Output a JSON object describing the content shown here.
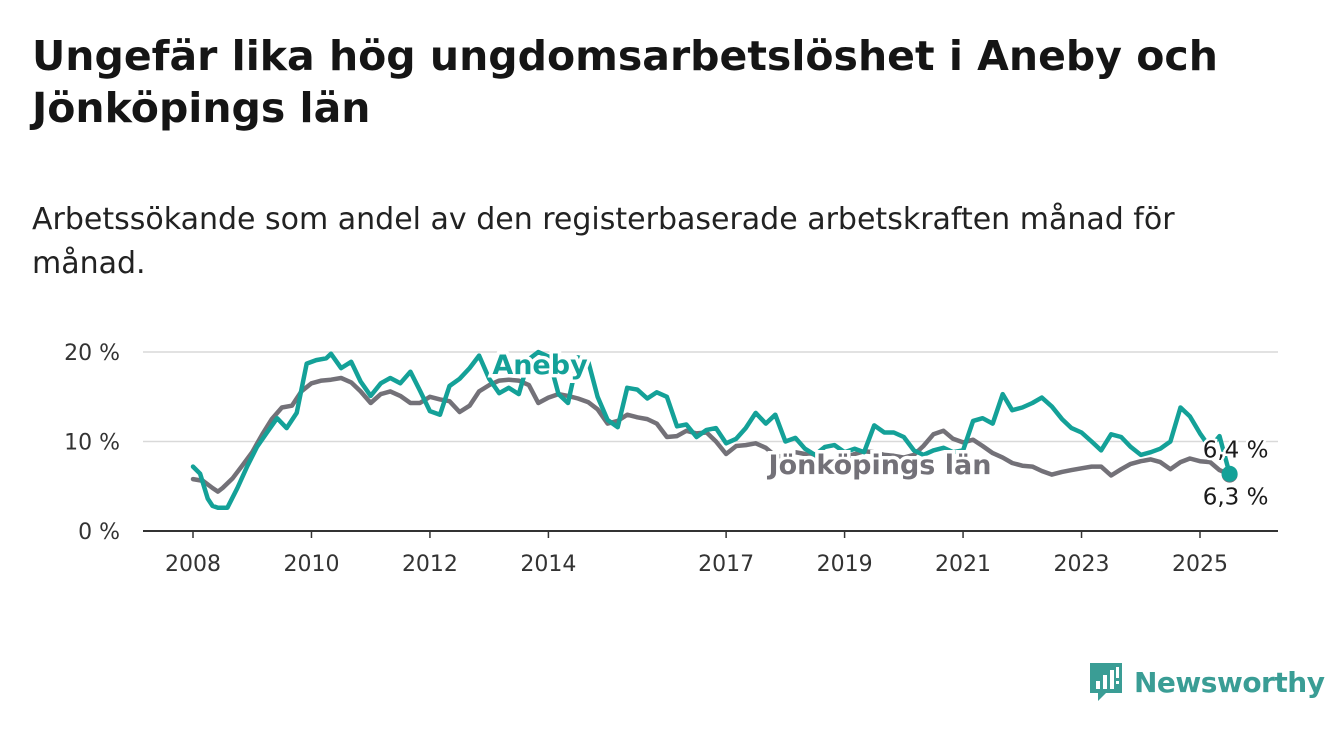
{
  "title": "Ungefär lika hög ungdomsarbetslöshet i Aneby och Jönköpings län",
  "subtitle": "Arbetssökande som andel av den registerbaserade arbetskraften månad för månad.",
  "logo": {
    "text": "Newsworthy",
    "color": "#3a9d95",
    "icon": "newsworthy-chart-bubble-icon"
  },
  "chart_data": {
    "type": "line",
    "title": "",
    "xlabel": "",
    "ylabel": "",
    "ylim": [
      0,
      20
    ],
    "xlim": [
      2008,
      2026.3
    ],
    "y_ticks": [
      {
        "value": 0,
        "label": "0 %"
      },
      {
        "value": 10,
        "label": "10 %"
      },
      {
        "value": 20,
        "label": "20 %"
      }
    ],
    "x_ticks": [
      {
        "value": 2008,
        "label": "2008"
      },
      {
        "value": 2010,
        "label": "2010"
      },
      {
        "value": 2012,
        "label": "2012"
      },
      {
        "value": 2014,
        "label": "2014"
      },
      {
        "value": 2017,
        "label": "2017"
      },
      {
        "value": 2019,
        "label": "2019"
      },
      {
        "value": 2021,
        "label": "2021"
      },
      {
        "value": 2023,
        "label": "2023"
      },
      {
        "value": 2025,
        "label": "2025"
      }
    ],
    "grid": "horizontal",
    "series": [
      {
        "name": "Jönköpings län",
        "color": "#737178",
        "end_label": "6,3 %",
        "points": [
          [
            2008.0,
            5.8
          ],
          [
            2008.17,
            5.6
          ],
          [
            2008.33,
            4.8
          ],
          [
            2008.42,
            4.4
          ],
          [
            2008.5,
            4.8
          ],
          [
            2008.67,
            5.9
          ],
          [
            2008.83,
            7.3
          ],
          [
            2009.0,
            8.8
          ],
          [
            2009.17,
            10.8
          ],
          [
            2009.33,
            12.5
          ],
          [
            2009.5,
            13.8
          ],
          [
            2009.67,
            14.0
          ],
          [
            2009.83,
            15.6
          ],
          [
            2010.0,
            16.5
          ],
          [
            2010.17,
            16.8
          ],
          [
            2010.33,
            16.9
          ],
          [
            2010.5,
            17.1
          ],
          [
            2010.67,
            16.6
          ],
          [
            2010.83,
            15.6
          ],
          [
            2011.0,
            14.3
          ],
          [
            2011.17,
            15.3
          ],
          [
            2011.33,
            15.6
          ],
          [
            2011.5,
            15.1
          ],
          [
            2011.67,
            14.3
          ],
          [
            2011.83,
            14.3
          ],
          [
            2012.0,
            15.0
          ],
          [
            2012.17,
            14.7
          ],
          [
            2012.33,
            14.5
          ],
          [
            2012.5,
            13.3
          ],
          [
            2012.67,
            14.0
          ],
          [
            2012.83,
            15.6
          ],
          [
            2013.0,
            16.3
          ],
          [
            2013.17,
            16.8
          ],
          [
            2013.33,
            16.9
          ],
          [
            2013.5,
            16.8
          ],
          [
            2013.67,
            16.3
          ],
          [
            2013.83,
            14.3
          ],
          [
            2014.0,
            14.9
          ],
          [
            2014.17,
            15.3
          ],
          [
            2014.33,
            15.1
          ],
          [
            2014.5,
            14.8
          ],
          [
            2014.67,
            14.4
          ],
          [
            2014.83,
            13.6
          ],
          [
            2015.0,
            12.0
          ],
          [
            2015.17,
            12.3
          ],
          [
            2015.33,
            13.0
          ],
          [
            2015.5,
            12.7
          ],
          [
            2015.67,
            12.5
          ],
          [
            2015.83,
            12.0
          ],
          [
            2016.0,
            10.5
          ],
          [
            2016.17,
            10.6
          ],
          [
            2016.33,
            11.2
          ],
          [
            2016.5,
            10.9
          ],
          [
            2016.67,
            11.0
          ],
          [
            2016.83,
            10.0
          ],
          [
            2017.0,
            8.6
          ],
          [
            2017.17,
            9.5
          ],
          [
            2017.33,
            9.6
          ],
          [
            2017.5,
            9.8
          ],
          [
            2017.67,
            9.3
          ],
          [
            2017.83,
            8.4
          ],
          [
            2018.0,
            8.3
          ],
          [
            2018.17,
            8.8
          ],
          [
            2018.33,
            8.6
          ],
          [
            2018.5,
            8.3
          ],
          [
            2018.67,
            7.9
          ],
          [
            2018.83,
            7.8
          ],
          [
            2019.0,
            8.2
          ],
          [
            2019.17,
            8.6
          ],
          [
            2019.33,
            8.9
          ],
          [
            2019.5,
            8.8
          ],
          [
            2019.67,
            8.5
          ],
          [
            2019.83,
            8.4
          ],
          [
            2020.0,
            8.2
          ],
          [
            2020.17,
            8.5
          ],
          [
            2020.33,
            9.5
          ],
          [
            2020.5,
            10.8
          ],
          [
            2020.67,
            11.2
          ],
          [
            2020.83,
            10.3
          ],
          [
            2021.0,
            9.9
          ],
          [
            2021.17,
            10.2
          ],
          [
            2021.33,
            9.5
          ],
          [
            2021.5,
            8.7
          ],
          [
            2021.67,
            8.2
          ],
          [
            2021.83,
            7.6
          ],
          [
            2022.0,
            7.3
          ],
          [
            2022.17,
            7.2
          ],
          [
            2022.33,
            6.7
          ],
          [
            2022.5,
            6.3
          ],
          [
            2022.67,
            6.6
          ],
          [
            2022.83,
            6.8
          ],
          [
            2023.0,
            7.0
          ],
          [
            2023.17,
            7.2
          ],
          [
            2023.33,
            7.2
          ],
          [
            2023.5,
            6.2
          ],
          [
            2023.67,
            6.9
          ],
          [
            2023.83,
            7.5
          ],
          [
            2024.0,
            7.8
          ],
          [
            2024.17,
            8.0
          ],
          [
            2024.33,
            7.7
          ],
          [
            2024.5,
            6.9
          ],
          [
            2024.67,
            7.7
          ],
          [
            2024.83,
            8.1
          ],
          [
            2025.0,
            7.8
          ],
          [
            2025.17,
            7.7
          ],
          [
            2025.33,
            6.8
          ],
          [
            2025.5,
            6.3
          ]
        ]
      },
      {
        "name": "Aneby",
        "color": "#14a198",
        "end_label": "6,4 %",
        "points": [
          [
            2008.0,
            7.2
          ],
          [
            2008.12,
            6.4
          ],
          [
            2008.25,
            3.6
          ],
          [
            2008.33,
            2.8
          ],
          [
            2008.42,
            2.6
          ],
          [
            2008.5,
            2.6
          ],
          [
            2008.58,
            2.6
          ],
          [
            2008.75,
            4.8
          ],
          [
            2008.92,
            7.3
          ],
          [
            2009.08,
            9.4
          ],
          [
            2009.25,
            11.0
          ],
          [
            2009.42,
            12.6
          ],
          [
            2009.58,
            11.5
          ],
          [
            2009.75,
            13.2
          ],
          [
            2009.92,
            18.7
          ],
          [
            2010.08,
            19.1
          ],
          [
            2010.25,
            19.3
          ],
          [
            2010.33,
            19.8
          ],
          [
            2010.5,
            18.2
          ],
          [
            2010.67,
            18.9
          ],
          [
            2010.83,
            16.7
          ],
          [
            2011.0,
            15.1
          ],
          [
            2011.17,
            16.5
          ],
          [
            2011.33,
            17.1
          ],
          [
            2011.5,
            16.5
          ],
          [
            2011.67,
            17.8
          ],
          [
            2011.83,
            15.7
          ],
          [
            2012.0,
            13.4
          ],
          [
            2012.17,
            13.0
          ],
          [
            2012.33,
            16.2
          ],
          [
            2012.5,
            17.0
          ],
          [
            2012.67,
            18.2
          ],
          [
            2012.83,
            19.6
          ],
          [
            2013.0,
            17.0
          ],
          [
            2013.17,
            15.4
          ],
          [
            2013.33,
            16.0
          ],
          [
            2013.5,
            15.3
          ],
          [
            2013.67,
            19.2
          ],
          [
            2013.83,
            20.0
          ],
          [
            2014.0,
            19.5
          ],
          [
            2014.17,
            15.3
          ],
          [
            2014.33,
            14.3
          ],
          [
            2014.5,
            19.4
          ],
          [
            2014.67,
            19.0
          ],
          [
            2014.83,
            15.0
          ],
          [
            2015.0,
            12.4
          ],
          [
            2015.17,
            11.6
          ],
          [
            2015.33,
            16.0
          ],
          [
            2015.5,
            15.8
          ],
          [
            2015.67,
            14.8
          ],
          [
            2015.83,
            15.5
          ],
          [
            2016.0,
            15.0
          ],
          [
            2016.17,
            11.7
          ],
          [
            2016.33,
            11.9
          ],
          [
            2016.5,
            10.5
          ],
          [
            2016.67,
            11.3
          ],
          [
            2016.83,
            11.5
          ],
          [
            2017.0,
            9.8
          ],
          [
            2017.17,
            10.3
          ],
          [
            2017.33,
            11.5
          ],
          [
            2017.5,
            13.2
          ],
          [
            2017.67,
            12.0
          ],
          [
            2017.83,
            13.0
          ],
          [
            2018.0,
            10.0
          ],
          [
            2018.17,
            10.4
          ],
          [
            2018.33,
            9.2
          ],
          [
            2018.5,
            8.5
          ],
          [
            2018.67,
            9.4
          ],
          [
            2018.83,
            9.6
          ],
          [
            2019.0,
            8.8
          ],
          [
            2019.17,
            9.2
          ],
          [
            2019.33,
            8.8
          ],
          [
            2019.5,
            11.8
          ],
          [
            2019.67,
            11.0
          ],
          [
            2019.83,
            11.0
          ],
          [
            2020.0,
            10.5
          ],
          [
            2020.17,
            9.0
          ],
          [
            2020.33,
            8.5
          ],
          [
            2020.5,
            9.0
          ],
          [
            2020.67,
            9.3
          ],
          [
            2020.83,
            8.8
          ],
          [
            2021.0,
            9.0
          ],
          [
            2021.17,
            12.3
          ],
          [
            2021.33,
            12.6
          ],
          [
            2021.5,
            12.0
          ],
          [
            2021.67,
            15.3
          ],
          [
            2021.83,
            13.5
          ],
          [
            2022.0,
            13.8
          ],
          [
            2022.17,
            14.3
          ],
          [
            2022.33,
            14.9
          ],
          [
            2022.5,
            13.9
          ],
          [
            2022.67,
            12.5
          ],
          [
            2022.83,
            11.5
          ],
          [
            2023.0,
            11.0
          ],
          [
            2023.17,
            10.0
          ],
          [
            2023.33,
            9.0
          ],
          [
            2023.5,
            10.8
          ],
          [
            2023.67,
            10.5
          ],
          [
            2023.83,
            9.4
          ],
          [
            2024.0,
            8.5
          ],
          [
            2024.17,
            8.8
          ],
          [
            2024.33,
            9.2
          ],
          [
            2024.5,
            10.0
          ],
          [
            2024.67,
            13.8
          ],
          [
            2024.83,
            12.8
          ],
          [
            2025.0,
            10.9
          ],
          [
            2025.17,
            9.3
          ],
          [
            2025.33,
            10.6
          ],
          [
            2025.5,
            6.4
          ]
        ]
      }
    ],
    "series_labels": [
      {
        "series": "Aneby",
        "text": "Aneby"
      },
      {
        "series": "Jönköpings län",
        "text": "Jönköpings län"
      }
    ]
  }
}
